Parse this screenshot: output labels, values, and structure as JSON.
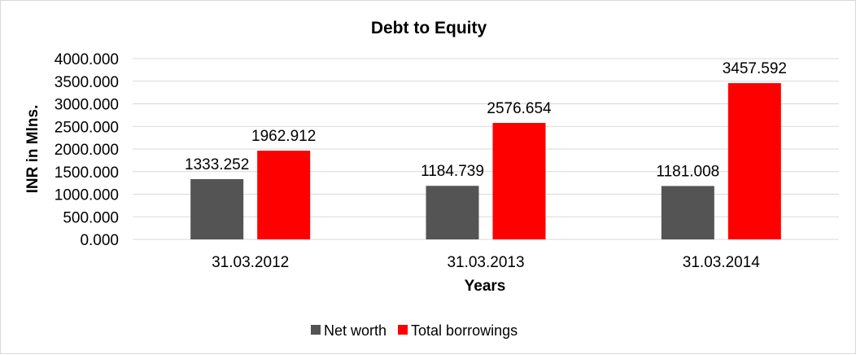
{
  "chart_data": {
    "type": "bar",
    "title": "Debt to Equity",
    "xlabel": "Years",
    "ylabel": "INR in Mlns.",
    "categories": [
      "31.03.2012",
      "31.03.2013",
      "31.03.2014"
    ],
    "series": [
      {
        "name": "Net worth",
        "color": "#545454",
        "values": [
          1333.252,
          1184.739,
          1181.008
        ],
        "labels": [
          "1333.252",
          "1184.739",
          "1181.008"
        ]
      },
      {
        "name": "Total borrowings",
        "color": "#ff0000",
        "values": [
          1962.912,
          2576.654,
          3457.592
        ],
        "labels": [
          "1962.912",
          "2576.654",
          "3457.592"
        ]
      }
    ],
    "ylim": [
      0,
      4000
    ],
    "yticks": [
      "0.000",
      "500.000",
      "1000.000",
      "1500.000",
      "2000.000",
      "2500.000",
      "3000.000",
      "3500.000",
      "4000.000"
    ],
    "grid": true,
    "legend": "bottom"
  }
}
